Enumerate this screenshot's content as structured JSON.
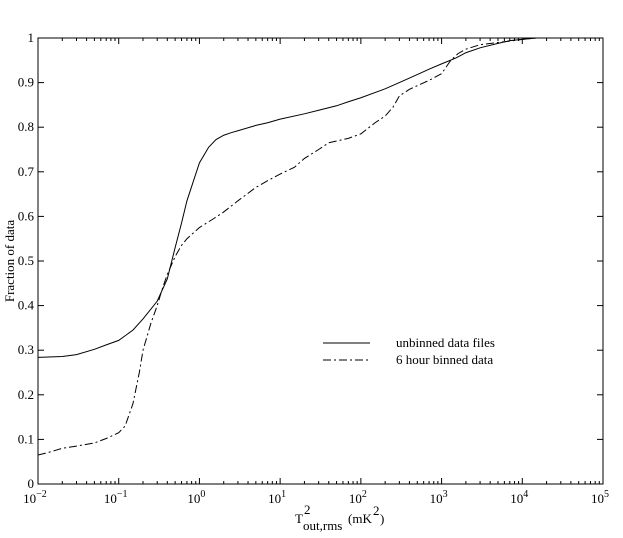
{
  "chart_data": {
    "type": "line",
    "xscale": "log",
    "xlim": [
      0.01,
      100000
    ],
    "ylim": [
      0,
      1
    ],
    "xlabel": {
      "base": "T",
      "superscript": "2",
      "subscript": "out,rms",
      "unit_prefix": "(mK",
      "unit_sup": "2",
      "unit_suffix": ")"
    },
    "ylabel": "Fraction of data",
    "x_ticks": [
      {
        "value": 0.01,
        "base": "10",
        "exp": "−2"
      },
      {
        "value": 0.1,
        "base": "10",
        "exp": "−1"
      },
      {
        "value": 1,
        "base": "10",
        "exp": "0"
      },
      {
        "value": 10,
        "base": "10",
        "exp": "1"
      },
      {
        "value": 100,
        "base": "10",
        "exp": "2"
      },
      {
        "value": 1000,
        "base": "10",
        "exp": "3"
      },
      {
        "value": 10000,
        "base": "10",
        "exp": "4"
      },
      {
        "value": 100000,
        "base": "10",
        "exp": "5"
      }
    ],
    "y_ticks": [
      {
        "value": 0,
        "label": "0"
      },
      {
        "value": 0.1,
        "label": "0.1"
      },
      {
        "value": 0.2,
        "label": "0.2"
      },
      {
        "value": 0.3,
        "label": "0.3"
      },
      {
        "value": 0.4,
        "label": "0.4"
      },
      {
        "value": 0.5,
        "label": "0.5"
      },
      {
        "value": 0.6,
        "label": "0.6"
      },
      {
        "value": 0.7,
        "label": "0.7"
      },
      {
        "value": 0.8,
        "label": "0.8"
      },
      {
        "value": 0.9,
        "label": "0.9"
      },
      {
        "value": 1,
        "label": "1"
      }
    ],
    "grid": false,
    "legend_position": "center-right",
    "series": [
      {
        "name": "unbinned data files",
        "style": "solid",
        "points": [
          [
            0.01,
            0.284
          ],
          [
            0.02,
            0.286
          ],
          [
            0.03,
            0.29
          ],
          [
            0.05,
            0.302
          ],
          [
            0.07,
            0.312
          ],
          [
            0.1,
            0.322
          ],
          [
            0.15,
            0.345
          ],
          [
            0.2,
            0.37
          ],
          [
            0.3,
            0.41
          ],
          [
            0.4,
            0.46
          ],
          [
            0.5,
            0.53
          ],
          [
            0.6,
            0.585
          ],
          [
            0.7,
            0.635
          ],
          [
            1,
            0.72
          ],
          [
            1.3,
            0.755
          ],
          [
            1.6,
            0.772
          ],
          [
            2,
            0.782
          ],
          [
            2.5,
            0.788
          ],
          [
            3,
            0.792
          ],
          [
            5,
            0.804
          ],
          [
            7,
            0.81
          ],
          [
            10,
            0.818
          ],
          [
            20,
            0.83
          ],
          [
            30,
            0.838
          ],
          [
            50,
            0.848
          ],
          [
            70,
            0.857
          ],
          [
            100,
            0.866
          ],
          [
            200,
            0.886
          ],
          [
            300,
            0.9
          ],
          [
            500,
            0.918
          ],
          [
            700,
            0.93
          ],
          [
            1000,
            0.942
          ],
          [
            1500,
            0.955
          ],
          [
            2000,
            0.967
          ],
          [
            3000,
            0.978
          ],
          [
            5000,
            0.988
          ],
          [
            7000,
            0.994
          ],
          [
            10000,
            0.997
          ],
          [
            15000,
            1.0
          ],
          [
            100000,
            1.0
          ]
        ]
      },
      {
        "name": "6 hour binned data",
        "style": "dashdot",
        "points": [
          [
            0.01,
            0.065
          ],
          [
            0.013,
            0.07
          ],
          [
            0.02,
            0.08
          ],
          [
            0.03,
            0.085
          ],
          [
            0.05,
            0.092
          ],
          [
            0.07,
            0.102
          ],
          [
            0.1,
            0.115
          ],
          [
            0.12,
            0.13
          ],
          [
            0.15,
            0.18
          ],
          [
            0.18,
            0.25
          ],
          [
            0.2,
            0.3
          ],
          [
            0.25,
            0.36
          ],
          [
            0.3,
            0.4
          ],
          [
            0.35,
            0.44
          ],
          [
            0.4,
            0.47
          ],
          [
            0.5,
            0.51
          ],
          [
            0.6,
            0.535
          ],
          [
            0.7,
            0.55
          ],
          [
            1,
            0.575
          ],
          [
            1.5,
            0.595
          ],
          [
            2,
            0.61
          ],
          [
            3,
            0.635
          ],
          [
            5,
            0.665
          ],
          [
            7,
            0.68
          ],
          [
            10,
            0.695
          ],
          [
            15,
            0.71
          ],
          [
            20,
            0.73
          ],
          [
            30,
            0.75
          ],
          [
            40,
            0.765
          ],
          [
            70,
            0.775
          ],
          [
            100,
            0.785
          ],
          [
            150,
            0.81
          ],
          [
            200,
            0.825
          ],
          [
            250,
            0.845
          ],
          [
            300,
            0.87
          ],
          [
            400,
            0.885
          ],
          [
            500,
            0.893
          ],
          [
            700,
            0.905
          ],
          [
            1000,
            0.92
          ],
          [
            1300,
            0.95
          ],
          [
            1600,
            0.965
          ],
          [
            2000,
            0.975
          ],
          [
            3000,
            0.985
          ],
          [
            5000,
            0.99
          ],
          [
            7000,
            0.993
          ],
          [
            10000,
            0.997
          ],
          [
            15000,
            1.0
          ],
          [
            100000,
            1.0
          ]
        ]
      }
    ]
  }
}
